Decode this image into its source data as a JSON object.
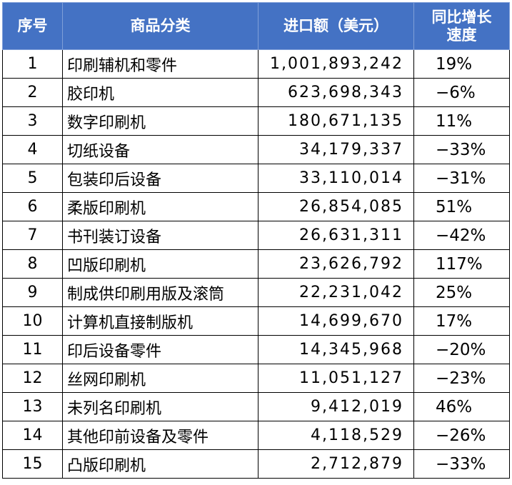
{
  "header": {
    "index": "序号",
    "category": "商品分类",
    "import_value": "进口额（美元）",
    "growth": "同比增长速度"
  },
  "rows": [
    {
      "index": "1",
      "category": "印刷辅机和零件",
      "value": "1,001,893,242",
      "growth": "19%"
    },
    {
      "index": "2",
      "category": "胶印机",
      "value": "623,698,343",
      "growth": "−6%"
    },
    {
      "index": "3",
      "category": "数字印刷机",
      "value": "180,671,135",
      "growth": "11%"
    },
    {
      "index": "4",
      "category": "切纸设备",
      "value": "34,179,337",
      "growth": "−33%"
    },
    {
      "index": "5",
      "category": "包装印后设备",
      "value": "33,110,014",
      "growth": "−31%"
    },
    {
      "index": "6",
      "category": "柔版印刷机",
      "value": "26,854,085",
      "growth": "51%"
    },
    {
      "index": "7",
      "category": "书刊装订设备",
      "value": "26,631,311",
      "growth": "−42%"
    },
    {
      "index": "8",
      "category": "凹版印刷机",
      "value": "23,626,792",
      "growth": "117%"
    },
    {
      "index": "9",
      "category": "制成供印刷用版及滚筒",
      "value": "22,231,042",
      "growth": "25%"
    },
    {
      "index": "10",
      "category": "计算机直接制版机",
      "value": "14,699,670",
      "growth": "17%"
    },
    {
      "index": "11",
      "category": "印后设备零件",
      "value": "14,345,968",
      "growth": "−20%"
    },
    {
      "index": "12",
      "category": "丝网印刷机",
      "value": "11,051,127",
      "growth": "−23%"
    },
    {
      "index": "13",
      "category": "未列名印刷机",
      "value": "9,412,019",
      "growth": "46%"
    },
    {
      "index": "14",
      "category": "其他印前设备及零件",
      "value": "4,118,529",
      "growth": "−26%"
    },
    {
      "index": "15",
      "category": "凸版印刷机",
      "value": "2,712,879",
      "growth": "−33%"
    }
  ]
}
